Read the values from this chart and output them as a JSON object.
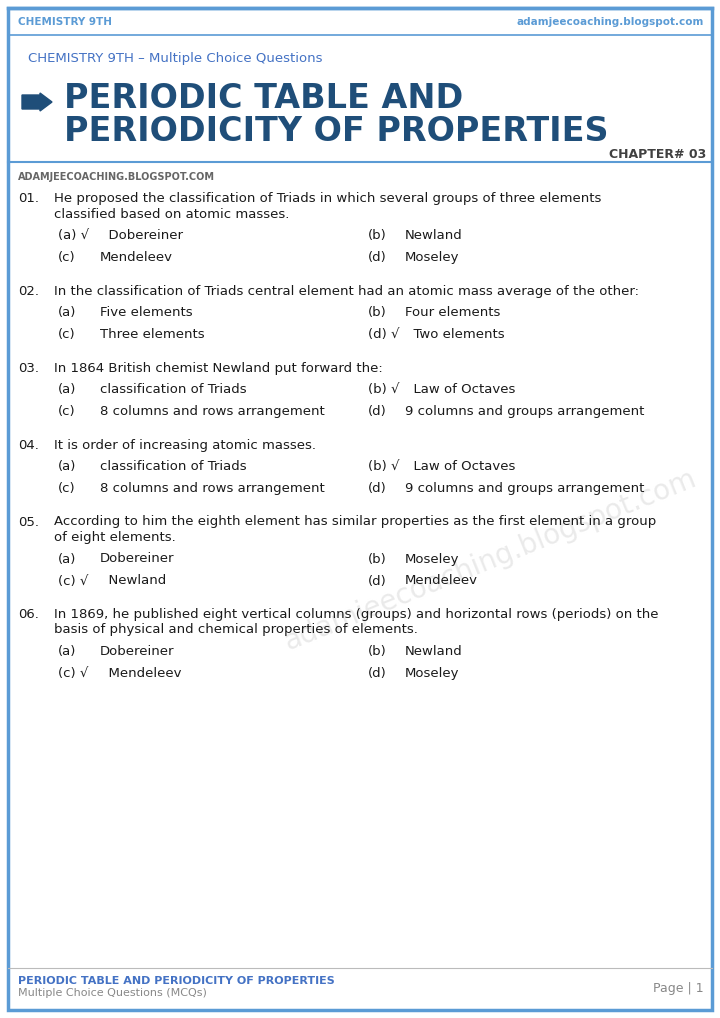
{
  "bg_color": "#ffffff",
  "border_color": "#5b9bd5",
  "header_top_text_left": "CHEMISTRY 9TH",
  "header_top_text_right": "adamjeecoaching.blogspot.com",
  "header_top_color": "#5b9bd5",
  "subtitle": "CHEMISTRY 9TH – Multiple Choice Questions",
  "subtitle_color": "#4472c4",
  "title_line1": "PERIODIC TABLE AND",
  "title_line2": "PERIODICITY OF PROPERTIES",
  "title_color": "#1f4e79",
  "chapter": "CHAPTER# 03",
  "chapter_color": "#404040",
  "website": "ADAMJEECOACHING.BLOGSPOT.COM",
  "website_color": "#666666",
  "footer_left": "PERIODIC TABLE AND PERIODICITY OF PROPERTIES",
  "footer_left2": "Multiple Choice Questions (MCQs)",
  "footer_right": "Page | 1",
  "footer_color": "#4472c4",
  "footer_sub_color": "#888888",
  "footer_right_color": "#888888",
  "text_color": "#1a1a1a",
  "watermark_text": "adamjeecoaching.blogspot.com",
  "questions": [
    {
      "num": "01.",
      "question": "He proposed the classification of Triads in which several groups of three elements\nclassified based on atomic masses.",
      "options": [
        {
          "label": "(a) √",
          "text": "  Dobereiner"
        },
        {
          "label": "(b)",
          "text": "Newland"
        },
        {
          "label": "(c)",
          "text": "Mendeleev"
        },
        {
          "label": "(d)",
          "text": "Moseley"
        }
      ]
    },
    {
      "num": "02.",
      "question": "In the classification of Triads central element had an atomic mass average of the other:",
      "options": [
        {
          "label": "(a)",
          "text": "Five elements"
        },
        {
          "label": "(b)",
          "text": "Four elements"
        },
        {
          "label": "(c)",
          "text": "Three elements"
        },
        {
          "label": "(d) √",
          "text": "  Two elements"
        }
      ]
    },
    {
      "num": "03.",
      "question": "In 1864 British chemist Newland put forward the:",
      "options": [
        {
          "label": "(a)",
          "text": "classification of Triads"
        },
        {
          "label": "(b) √",
          "text": "  Law of Octaves"
        },
        {
          "label": "(c)",
          "text": "8 columns and rows arrangement"
        },
        {
          "label": "(d)",
          "text": "9 columns and groups arrangement"
        }
      ]
    },
    {
      "num": "04.",
      "question": "It is order of increasing atomic masses.",
      "options": [
        {
          "label": "(a)",
          "text": "classification of Triads"
        },
        {
          "label": "(b) √",
          "text": "  Law of Octaves"
        },
        {
          "label": "(c)",
          "text": "8 columns and rows arrangement"
        },
        {
          "label": "(d)",
          "text": "9 columns and groups arrangement"
        }
      ]
    },
    {
      "num": "05.",
      "question": "According to him the eighth element has similar properties as the first element in a group\nof eight elements.",
      "options": [
        {
          "label": "(a)",
          "text": "Dobereiner"
        },
        {
          "label": "(b)",
          "text": "Moseley"
        },
        {
          "label": "(c) √",
          "text": "  Newland"
        },
        {
          "label": "(d)",
          "text": "Mendeleev"
        }
      ]
    },
    {
      "num": "06.",
      "question": "In 1869, he published eight vertical columns (groups) and horizontal rows (periods) on the\nbasis of physical and chemical properties of elements.",
      "options": [
        {
          "label": "(a)",
          "text": "Dobereiner"
        },
        {
          "label": "(b)",
          "text": "Newland"
        },
        {
          "label": "(c) √",
          "text": "  Mendeleev"
        },
        {
          "label": "(d)",
          "text": "Moseley"
        }
      ]
    }
  ]
}
